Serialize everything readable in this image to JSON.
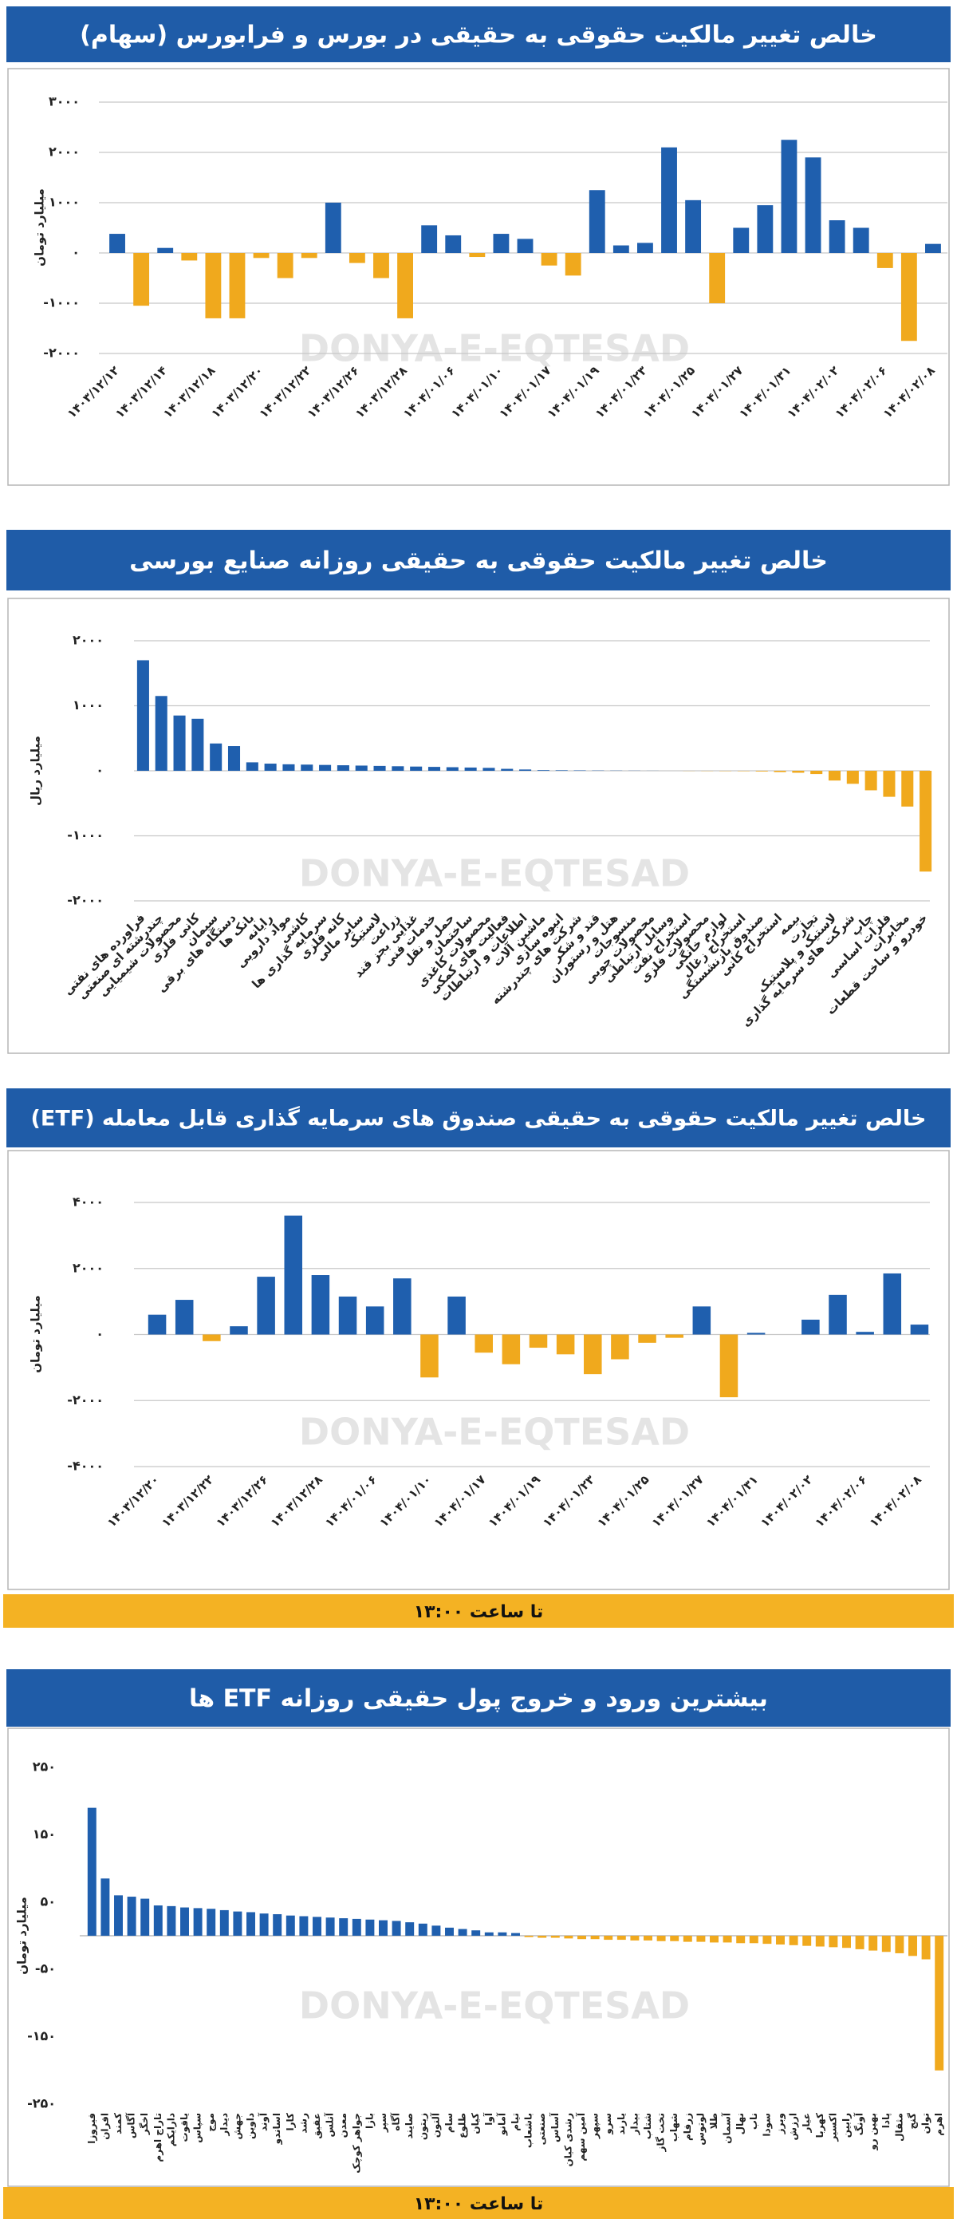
{
  "chart_data": [
    {
      "type": "bar",
      "title": "خالص تغییر مالکیت حقوقی به حقیقی در بورس و فرابورس (سهام)",
      "ylabel": "میلیارد تومان",
      "watermark": "DONYA-E-EQTESAD",
      "categories": [
        "۱۴۰۳/۱۲/۱۲",
        null,
        "۱۴۰۳/۱۲/۱۴",
        null,
        "۱۴۰۳/۱۲/۱۸",
        null,
        "۱۴۰۳/۱۲/۲۰",
        null,
        "۱۴۰۳/۱۲/۲۲",
        null,
        "۱۴۰۳/۱۲/۲۶",
        null,
        "۱۴۰۳/۱۲/۲۸",
        null,
        "۱۴۰۴/۰۱/۰۶",
        null,
        "۱۴۰۴/۰۱/۱۰",
        null,
        "۱۴۰۴/۰۱/۱۷",
        null,
        "۱۴۰۴/۰۱/۱۹",
        null,
        "۱۴۰۴/۰۱/۲۳",
        null,
        "۱۴۰۴/۰۱/۲۵",
        null,
        "۱۴۰۴/۰۱/۲۷",
        null,
        "۱۴۰۴/۰۱/۳۱",
        null,
        "۱۴۰۴/۰۲/۰۲",
        null,
        "۱۴۰۴/۰۲/۰۶",
        null,
        "۱۴۰۴/۰۲/۰۸"
      ],
      "values": [
        380,
        -1050,
        100,
        -150,
        -1300,
        -1300,
        -100,
        -500,
        -100,
        1000,
        -200,
        -500,
        -1300,
        550,
        350,
        -80,
        380,
        280,
        -250,
        -450,
        1250,
        150,
        200,
        2100,
        1050,
        -1000,
        500,
        950,
        2250,
        1900,
        650,
        500,
        -300,
        -1750,
        180
      ],
      "color_positive": "#1f5fae",
      "color_negative": "#f0a91d",
      "ylim": [
        -2000,
        3000
      ],
      "yticks": [
        {
          "value": 3000,
          "label": "۳۰۰۰"
        },
        {
          "value": 2000,
          "label": "۲۰۰۰"
        },
        {
          "value": 1000,
          "label": "۱۰۰۰"
        },
        {
          "value": 0,
          "label": "۰"
        },
        {
          "value": -1000,
          "label": "-۱۰۰۰"
        },
        {
          "value": -2000,
          "label": "-۲۰۰۰"
        }
      ],
      "grid": true
    },
    {
      "type": "bar",
      "title": "خالص تغییر مالکیت حقوقی به حقیقی روزانه صنایع بورسی",
      "ylabel": "میلیارد ریال",
      "watermark": "DONYA-E-EQTESAD",
      "categories": [
        "فراورده های نفتی",
        "چندرشته ای صنعتی",
        "محصولات شیمیایی",
        "کانی فلزی",
        "سیمان",
        "دستگاه های برقی",
        "بانک ها",
        "رایانه",
        "مواد دارویی",
        "کاشی",
        "سرمایه گذاری ها",
        "کانه فلزی",
        "سایر مالی",
        "لاستیک",
        "زراعت",
        "غذایی بجز قند",
        "خدمات فنی",
        "حمل و نقل",
        "ساختمان",
        "محصولات کاغذی",
        "فعالیت های کمکی",
        "اطلاعات و ارتباطات",
        "ماشین آلات",
        "انبوه سازی",
        "شرکت های چندرشته",
        "قند و شکر",
        "هتل و رستوران",
        "منسوجات",
        "محصولات چوبی",
        "وسایل ارتباطی",
        "استخراج نفت",
        "محصولات فلزی",
        "لوازم خانگی",
        "استخراج زغال",
        "صندوق بازنشستگی",
        "استخراج کانی",
        "بیمه",
        "تجارت",
        "لاستیک و پلاستیک",
        "شرکت های سرمایه گذاری",
        "چاپ",
        "فلزات اساسی",
        "مخابرات",
        "خودرو و ساخت قطعات"
      ],
      "values": [
        1700,
        1150,
        850,
        800,
        420,
        380,
        130,
        110,
        100,
        95,
        90,
        85,
        80,
        75,
        70,
        65,
        60,
        55,
        50,
        45,
        30,
        20,
        10,
        8,
        6,
        4,
        3,
        2,
        1,
        0,
        -2,
        -3,
        -4,
        -5,
        -10,
        -20,
        -30,
        -50,
        -150,
        -200,
        -300,
        -400,
        -550,
        -1550
      ],
      "color_positive": "#1f5fae",
      "color_negative": "#f0a91d",
      "ylim": [
        -2000,
        2000
      ],
      "yticks": [
        {
          "value": 2000,
          "label": "۲۰۰۰"
        },
        {
          "value": 1000,
          "label": "۱۰۰۰"
        },
        {
          "value": 0,
          "label": "۰"
        },
        {
          "value": -1000,
          "label": "-۱۰۰۰"
        },
        {
          "value": -2000,
          "label": "-۲۰۰۰"
        }
      ],
      "grid": true
    },
    {
      "type": "bar",
      "title": "خالص تغییر مالکیت حقوقی به حقیقی صندوق های سرمایه گذاری قابل معامله (ETF)",
      "ylabel": "میلیارد تومان",
      "watermark": "DONYA-E-EQTESAD",
      "footnote": "تا ساعت ۱۳:۰۰",
      "categories": [
        "۱۴۰۳/۱۲/۲۰",
        null,
        "۱۴۰۳/۱۲/۲۲",
        null,
        "۱۴۰۳/۱۲/۲۶",
        null,
        "۱۴۰۳/۱۲/۲۸",
        null,
        "۱۴۰۴/۰۱/۰۶",
        null,
        "۱۴۰۴/۰۱/۱۰",
        null,
        "۱۴۰۴/۰۱/۱۷",
        null,
        "۱۴۰۴/۰۱/۱۹",
        null,
        "۱۴۰۴/۰۱/۲۳",
        null,
        "۱۴۰۴/۰۱/۲۵",
        null,
        "۱۴۰۴/۰۱/۲۷",
        null,
        "۱۴۰۴/۰۱/۳۱",
        null,
        "۱۴۰۴/۰۲/۰۲",
        null,
        "۱۴۰۴/۰۲/۰۶",
        null,
        "۱۴۰۴/۰۲/۰۸"
      ],
      "values": [
        600,
        1050,
        -200,
        250,
        1750,
        3600,
        1800,
        1150,
        850,
        1700,
        -1300,
        1150,
        -550,
        -900,
        -400,
        -600,
        -1200,
        -750,
        -250,
        -100,
        850,
        -1900,
        50,
        0,
        450,
        1200,
        80,
        1850,
        300
      ],
      "color_positive": "#1f5fae",
      "color_negative": "#f0a91d",
      "ylim": [
        -4000,
        4000
      ],
      "yticks": [
        {
          "value": 4000,
          "label": "۴۰۰۰"
        },
        {
          "value": 2000,
          "label": "۲۰۰۰"
        },
        {
          "value": 0,
          "label": "۰"
        },
        {
          "value": -2000,
          "label": "-۲۰۰۰"
        },
        {
          "value": -4000,
          "label": "-۴۰۰۰"
        }
      ],
      "grid": true
    },
    {
      "type": "bar",
      "title": "بیشترین ورود و خروج پول حقیقی روزانه ETF ها",
      "ylabel": "میلیارد تومان",
      "watermark": "DONYA-E-EQTESAD",
      "footnote": "تا ساعت ۱۳:۰۰",
      "categories": [
        "فیروزا",
        "افران",
        "کمند",
        "آگاس",
        "اخگر",
        "تاراج اهرم",
        "دارایکم",
        "یاقوت",
        "سپاس",
        "موج",
        "دیدار",
        "جهش",
        "داوین",
        "آوند",
        "اساندو",
        "کارا",
        "رشد",
        "عقیق",
        "آتلس",
        "معدن",
        "جواهر کوچک",
        "بازا",
        "سپر",
        "آگاه",
        "صایند",
        "زیتون",
        "آلتون",
        "سام",
        "طلوع",
        "کیان",
        "آوا",
        "آمانو",
        "تیام",
        "باشعاب",
        "صنعتی",
        "آساس",
        "رشدی کیان",
        "آمین سهم",
        "سپهر",
        "سرو",
        "یارند",
        "بیدار",
        "شتاب",
        "تخت گاز",
        "شهاب",
        "زرفام",
        "لوتوس",
        "طلا",
        "آسمان",
        "نهال",
        "ناب",
        "سودا",
        "وبرز",
        "ارزش",
        "عیار",
        "کهربا",
        "اکسیر",
        "رابین",
        "آونگ",
        "بهین رو",
        "پادا",
        "مثقال",
        "گنج",
        "توان",
        "اهرم"
      ],
      "values": [
        190,
        85,
        60,
        58,
        55,
        45,
        44,
        42,
        41,
        40,
        38,
        36,
        35,
        33,
        32,
        30,
        29,
        28,
        27,
        26,
        25,
        24,
        23,
        22,
        20,
        18,
        15,
        12,
        10,
        8,
        5,
        5,
        4,
        -2,
        -3,
        -3,
        -4,
        -5,
        -5,
        -6,
        -6,
        -7,
        -7,
        -8,
        -8,
        -9,
        -9,
        -10,
        -10,
        -11,
        -11,
        -12,
        -13,
        -14,
        -15,
        -16,
        -17,
        -18,
        -20,
        -22,
        -24,
        -26,
        -30,
        -35,
        -200
      ],
      "color_positive": "#1f5fae",
      "color_negative": "#f0a91d",
      "ylim": [
        -250,
        250
      ],
      "yticks": [
        {
          "value": 250,
          "label": "۲۵۰"
        },
        {
          "value": 150,
          "label": "۱۵۰"
        },
        {
          "value": 50,
          "label": "۵۰"
        },
        {
          "value": -50,
          "label": "-۵۰"
        },
        {
          "value": -150,
          "label": "-۱۵۰"
        },
        {
          "value": -250,
          "label": "-۲۵۰"
        }
      ],
      "grid": false
    }
  ]
}
